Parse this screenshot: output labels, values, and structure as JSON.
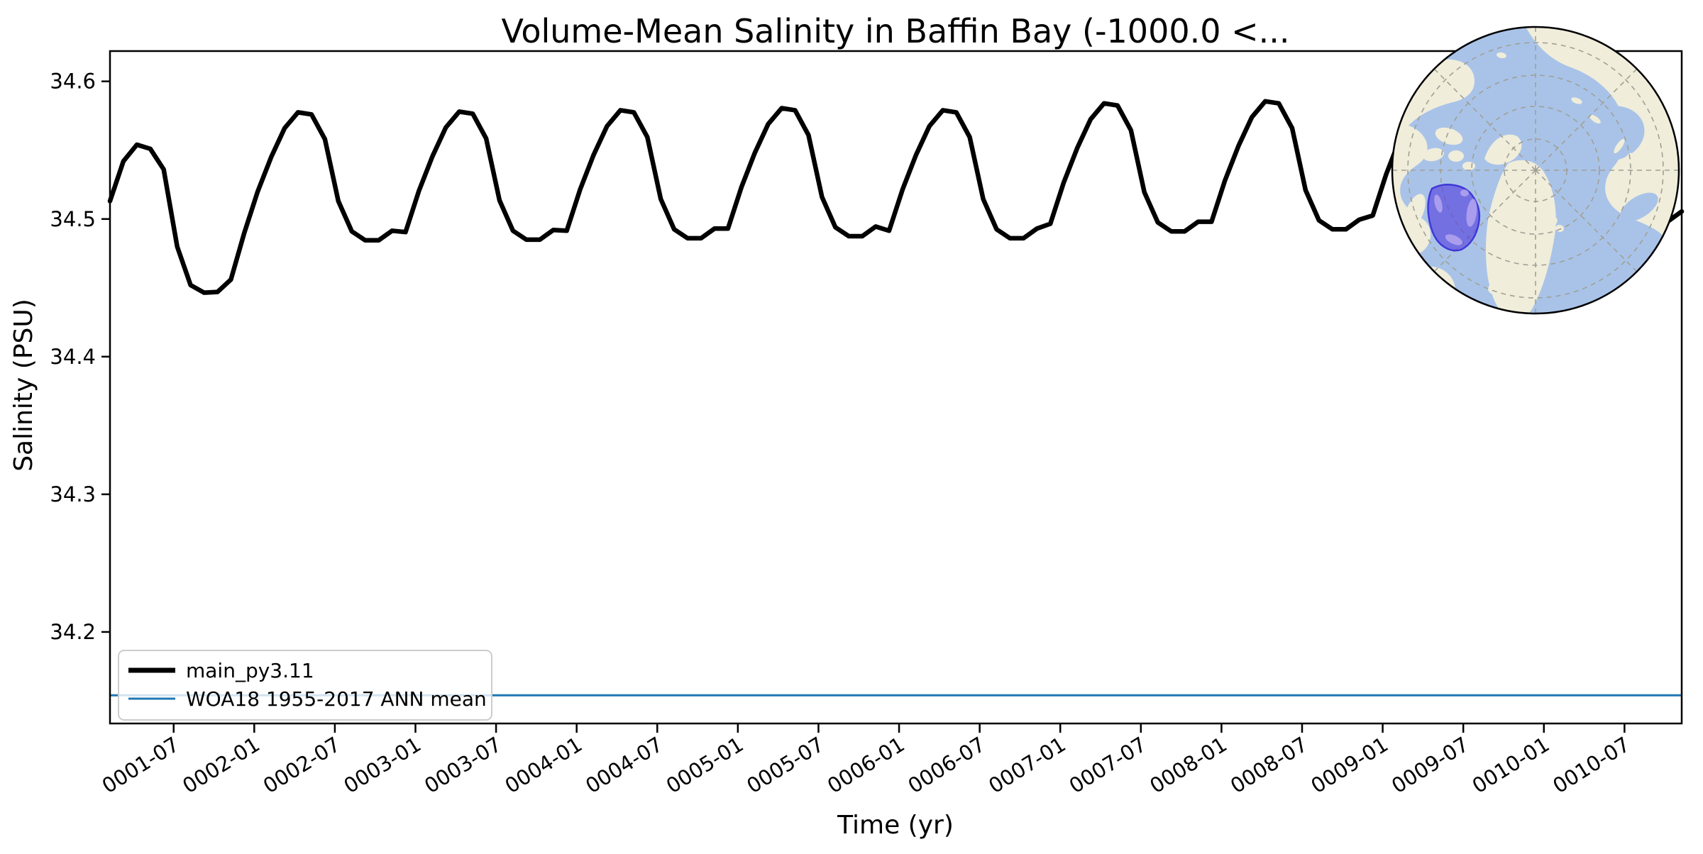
{
  "title": "Volume-Mean Salinity in Baffin Bay (-1000.0 <...",
  "axes": {
    "xlabel": "Time (yr)",
    "ylabel": "Salinity (PSU)",
    "ytick_labels": [
      "34.6",
      "34.5",
      "34.4",
      "34.3",
      "34.2"
    ],
    "ytick_values": [
      34.6,
      34.5,
      34.4,
      34.3,
      34.2
    ],
    "xtick_labels": [
      "0001-07",
      "0002-01",
      "0002-07",
      "0003-01",
      "0003-07",
      "0004-01",
      "0004-07",
      "0005-01",
      "0005-07",
      "0006-01",
      "0006-07",
      "0007-01",
      "0007-07",
      "0008-01",
      "0008-07",
      "0009-01",
      "0009-07",
      "0010-01",
      "0010-07"
    ],
    "ylim": [
      34.1335,
      34.622
    ]
  },
  "legend": {
    "items": [
      {
        "label": "main_py3.11",
        "color": "#000000",
        "linewidth": 7
      },
      {
        "label": "WOA18 1955-2017 ANN mean",
        "color": "#1f77b4",
        "linewidth": 3
      }
    ]
  },
  "chart_data": {
    "type": "line",
    "title": "Volume-Mean Salinity in Baffin Bay (-1000.0 <...",
    "xlabel": "Time (yr)",
    "ylabel": "Salinity (PSU)",
    "x_start_month": "0001-03",
    "x_end_month": "0010-12",
    "x_interval": "monthly",
    "ylim": [
      34.1335,
      34.622
    ],
    "grid": false,
    "legend_position": "lower left",
    "series": [
      {
        "name": "main_py3.11",
        "color": "#000000",
        "values": [
          34.513,
          34.542,
          34.554,
          34.551,
          34.536,
          34.48,
          34.452,
          34.4465,
          34.447,
          34.456,
          34.49,
          34.52,
          34.545,
          34.566,
          34.5775,
          34.576,
          34.558,
          34.513,
          34.491,
          34.4845,
          34.4845,
          34.4915,
          34.4905,
          34.5205,
          34.5455,
          34.5665,
          34.578,
          34.5765,
          34.5585,
          34.5135,
          34.4915,
          34.485,
          34.485,
          34.492,
          34.4915,
          34.5215,
          34.5465,
          34.5675,
          34.579,
          34.5775,
          34.5595,
          34.5145,
          34.4925,
          34.486,
          34.486,
          34.493,
          34.493,
          34.523,
          34.548,
          34.569,
          34.5805,
          34.579,
          34.561,
          34.516,
          34.494,
          34.4875,
          34.4875,
          34.4945,
          34.4915,
          34.5215,
          34.5465,
          34.5675,
          34.579,
          34.5775,
          34.5595,
          34.5145,
          34.4925,
          34.486,
          34.486,
          34.493,
          34.4965,
          34.5265,
          34.5515,
          34.5725,
          34.584,
          34.5825,
          34.5645,
          34.5195,
          34.4975,
          34.491,
          34.491,
          34.498,
          34.498,
          34.528,
          34.553,
          34.574,
          34.5855,
          34.584,
          34.566,
          34.521,
          34.499,
          34.4925,
          34.4925,
          34.4995,
          34.5025,
          34.5325,
          34.5575,
          34.5785,
          34.59,
          34.5885,
          34.5705,
          34.5255,
          34.5035,
          34.497,
          34.497,
          34.504,
          34.504,
          34.534,
          34.559,
          34.58,
          34.5915,
          34.59,
          34.572,
          34.527,
          34.505,
          34.4985,
          34.4985,
          34.5055
        ]
      },
      {
        "name": "WOA18 1955-2017 ANN mean",
        "color": "#1f77b4",
        "constant_value": 34.154
      }
    ]
  },
  "inset_map": {
    "name": "arctic-polar-inset-map",
    "projection": "north-polar",
    "highlight_region": "Baffin Bay",
    "colors": {
      "ocean": "#a9c3e8",
      "land": "#f0eddb",
      "graticule": "#a0a095",
      "outline": "#000000",
      "highlight_fill": "rgba(82,62,222,0.62)",
      "highlight_stroke": "#4038d8",
      "highlight_mottle": "rgba(215,195,245,0.55)"
    }
  }
}
